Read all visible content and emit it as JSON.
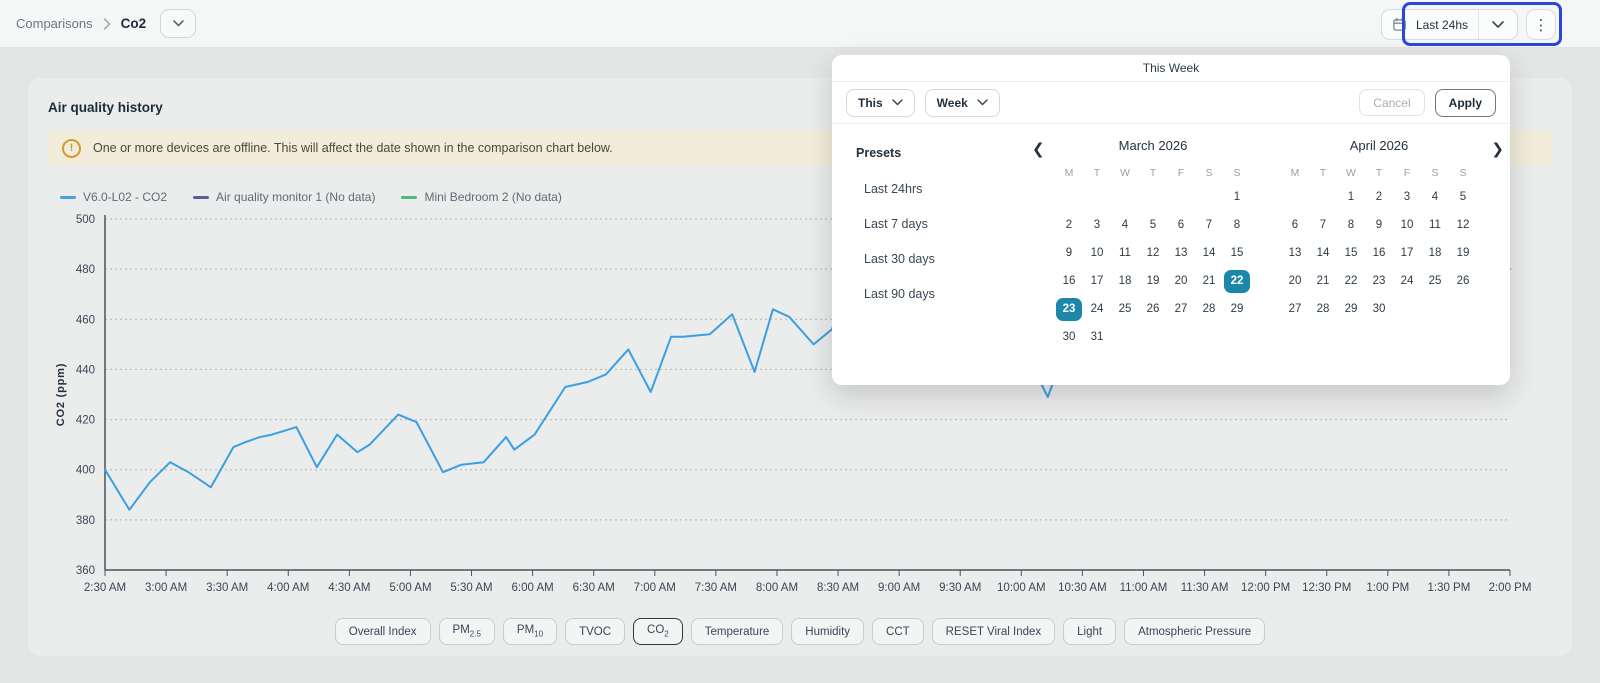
{
  "header": {
    "breadcrumb": {
      "root": "Comparisons",
      "current": "Co2"
    },
    "date_range_button": {
      "label": "Last 24hs"
    }
  },
  "annotation": {
    "highlight_color": "#2946dd"
  },
  "card": {
    "title": "Air quality history",
    "banner": {
      "text": "One or more devices are offline. This will affect the date shown in the comparison chart below."
    },
    "legend": [
      {
        "label": "V6.0-L02 - CO2",
        "color": "#45a1dd"
      },
      {
        "label": "Air quality monitor 1 (No data)",
        "color": "#5c5d9e"
      },
      {
        "label": "Mini Bedroom 2 (No data)",
        "color": "#4cb97e"
      }
    ],
    "filters": {
      "active_index": 4,
      "items": [
        {
          "base": "Overall Index",
          "sub": ""
        },
        {
          "base": "PM",
          "sub": "2.5"
        },
        {
          "base": "PM",
          "sub": "10"
        },
        {
          "base": "TVOC",
          "sub": ""
        },
        {
          "base": "CO",
          "sub": "2"
        },
        {
          "base": "Temperature",
          "sub": ""
        },
        {
          "base": "Humidity",
          "sub": ""
        },
        {
          "base": "CCT",
          "sub": ""
        },
        {
          "base": "RESET Viral Index",
          "sub": ""
        },
        {
          "base": "Light",
          "sub": ""
        },
        {
          "base": "Atmospheric Pressure",
          "sub": ""
        }
      ]
    }
  },
  "popup": {
    "title": "This Week",
    "period_dropdown": "This",
    "unit_dropdown": "Week",
    "cancel_label": "Cancel",
    "apply_label": "Apply",
    "selected_color": "#1d87a9",
    "presets": {
      "title": "Presets",
      "items": [
        "Last 24hrs",
        "Last 7 days",
        "Last 30 days",
        "Last 90 days"
      ]
    },
    "calendars": [
      {
        "title": "March 2026",
        "day_headers": [
          "M",
          "T",
          "W",
          "T",
          "F",
          "S",
          "S"
        ],
        "weeks": [
          [
            "",
            "",
            "",
            "",
            "",
            "",
            "1"
          ],
          [
            "2",
            "3",
            "4",
            "5",
            "6",
            "7",
            "8"
          ],
          [
            "9",
            "10",
            "11",
            "12",
            "13",
            "14",
            "15"
          ],
          [
            "16",
            "17",
            "18",
            "19",
            "20",
            "21",
            "22"
          ],
          [
            "23",
            "24",
            "25",
            "26",
            "27",
            "28",
            "29"
          ],
          [
            "30",
            "31",
            "",
            "",
            "",
            "",
            ""
          ]
        ],
        "selected": [
          "22",
          "23"
        ]
      },
      {
        "title": "April 2026",
        "day_headers": [
          "M",
          "T",
          "W",
          "T",
          "F",
          "S",
          "S"
        ],
        "weeks": [
          [
            "",
            "",
            "1",
            "2",
            "3",
            "4",
            "5"
          ],
          [
            "6",
            "7",
            "8",
            "9",
            "10",
            "11",
            "12"
          ],
          [
            "13",
            "14",
            "15",
            "16",
            "17",
            "18",
            "19"
          ],
          [
            "20",
            "21",
            "22",
            "23",
            "24",
            "25",
            "26"
          ],
          [
            "27",
            "28",
            "29",
            "30",
            "",
            "",
            ""
          ]
        ],
        "selected": []
      }
    ]
  },
  "chart_data": {
    "type": "line",
    "title": "Air quality history",
    "ylabel": "CO2 (ppm)",
    "ylim": [
      360,
      500
    ],
    "y_ticks": [
      360,
      380,
      400,
      420,
      440,
      460,
      480,
      500
    ],
    "grid": "dotted-horizontal",
    "legend_position": "top-left",
    "x_minutes_range": [
      0,
      690
    ],
    "x_tick_labels": [
      "2:30 AM",
      "3:00 AM",
      "3:30 AM",
      "4:00 AM",
      "4:30 AM",
      "5:00 AM",
      "5:30 AM",
      "6:00 AM",
      "6:30 AM",
      "7:00 AM",
      "7:30 AM",
      "8:00 AM",
      "8:30 AM",
      "9:00 AM",
      "9:30 AM",
      "10:00 AM",
      "10:30 AM",
      "11:00 AM",
      "11:30 AM",
      "12:00 PM",
      "12:30 PM",
      "1:00 PM",
      "1:30 PM",
      "2:00 PM"
    ],
    "series": [
      {
        "name": "V6.0-L02 - CO2",
        "color": "#3b9fe3",
        "points_minutes_ppm": [
          [
            0,
            400
          ],
          [
            12,
            384
          ],
          [
            22,
            395
          ],
          [
            32,
            403
          ],
          [
            41,
            399
          ],
          [
            52,
            393
          ],
          [
            63,
            409
          ],
          [
            69,
            411
          ],
          [
            76,
            413
          ],
          [
            82,
            414
          ],
          [
            90,
            416
          ],
          [
            94,
            417
          ],
          [
            104,
            401
          ],
          [
            114,
            414
          ],
          [
            124,
            407
          ],
          [
            130,
            410
          ],
          [
            144,
            422
          ],
          [
            153,
            419
          ],
          [
            166,
            399
          ],
          [
            175,
            402
          ],
          [
            186,
            403
          ],
          [
            197,
            413
          ],
          [
            201,
            408
          ],
          [
            211,
            414
          ],
          [
            226,
            433
          ],
          [
            237,
            435
          ],
          [
            246,
            438
          ],
          [
            257,
            448
          ],
          [
            268,
            431
          ],
          [
            278,
            453
          ],
          [
            284,
            453
          ],
          [
            297,
            454
          ],
          [
            308,
            462
          ],
          [
            319,
            439
          ],
          [
            328,
            464
          ],
          [
            336,
            461
          ],
          [
            348,
            450
          ],
          [
            357,
            456
          ],
          [
            363,
            467
          ],
          [
            370,
            470
          ],
          [
            385,
            462
          ],
          [
            400,
            468
          ],
          [
            415,
            473
          ],
          [
            430,
            469
          ],
          [
            445,
            452
          ],
          [
            455,
            442
          ],
          [
            463,
            429
          ],
          [
            472,
            449
          ],
          [
            488,
            463
          ],
          [
            505,
            471
          ],
          [
            522,
            467
          ],
          [
            540,
            474
          ],
          [
            558,
            470
          ],
          [
            575,
            477
          ],
          [
            592,
            473
          ],
          [
            610,
            479
          ],
          [
            628,
            475
          ],
          [
            645,
            481
          ],
          [
            662,
            477
          ],
          [
            678,
            482
          ],
          [
            690,
            480
          ]
        ]
      },
      {
        "name": "Air quality monitor 1 (No data)",
        "color": "#5c5d9e",
        "points_minutes_ppm": []
      },
      {
        "name": "Mini Bedroom 2 (No data)",
        "color": "#4cb97e",
        "points_minutes_ppm": []
      }
    ]
  }
}
